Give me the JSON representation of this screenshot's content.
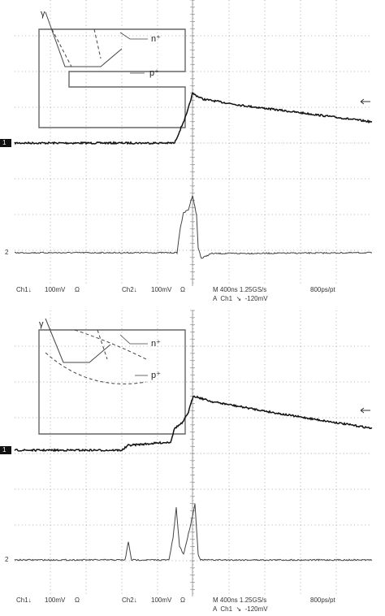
{
  "panels": [
    {
      "inset": {
        "gamma": "γ",
        "n": "n⁺",
        "p": "p⁺"
      },
      "markers": {
        "ch1": "1",
        "ch2": "2"
      },
      "readout": {
        "ch1": "Ch1↓",
        "ch1_scale": "100mV",
        "ch1_imp": "Ω",
        "ch2": "Ch2↓",
        "ch2_scale": "100mV",
        "ch2_imp": "Ω",
        "timebase": "M 400ns 1.25GS/s",
        "resolution": "800ps/pt",
        "trigger": "A  Ch1  ↘  -120mV"
      }
    },
    {
      "inset": {
        "gamma": "γ",
        "n": "n⁺",
        "p": "p⁺"
      },
      "markers": {
        "ch1": "1",
        "ch2": "2"
      },
      "readout": {
        "ch1": "Ch1↓",
        "ch1_scale": "100mV",
        "ch1_imp": "Ω",
        "ch2": "Ch2↓",
        "ch2_scale": "100mV",
        "ch2_imp": "Ω",
        "timebase": "M 400ns 1.25GS/s",
        "resolution": "800ps/pt",
        "trigger": "A  Ch1  ↘  -120mV"
      }
    }
  ]
}
